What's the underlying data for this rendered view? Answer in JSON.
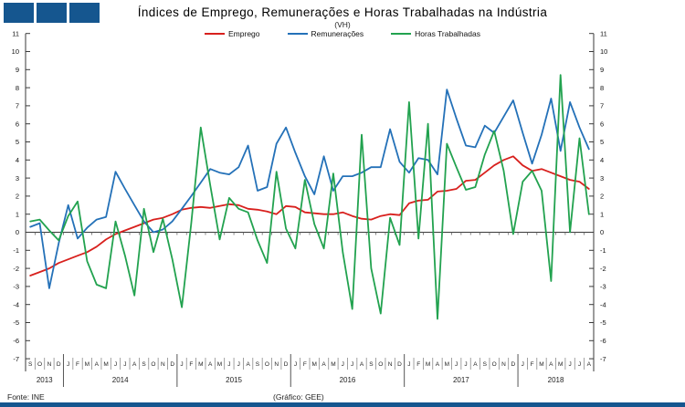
{
  "chart_data": {
    "type": "line",
    "title": "Índices de Emprego, Remunerações e Horas Trabalhadas na Indústria",
    "subtitle": "(VH)",
    "grid": false,
    "legend_position": "top",
    "y_axis": {
      "min": -7,
      "max": 11,
      "step": 1,
      "labels_both_sides": true
    },
    "months": [
      "S",
      "O",
      "N",
      "D",
      "J",
      "F",
      "M",
      "A",
      "M",
      "J",
      "J",
      "A",
      "S",
      "O",
      "N",
      "D",
      "J",
      "F",
      "M",
      "A",
      "M",
      "J",
      "J",
      "A",
      "S",
      "O",
      "N",
      "D",
      "J",
      "F",
      "M",
      "A",
      "M",
      "J",
      "J",
      "A",
      "S",
      "O",
      "N",
      "D",
      "J",
      "F",
      "M",
      "A",
      "M",
      "J",
      "J",
      "A",
      "S",
      "O",
      "N",
      "D",
      "J",
      "F",
      "M",
      "A",
      "M",
      "J",
      "J",
      "A"
    ],
    "year_groups": [
      {
        "label": "2013",
        "start": 0,
        "count": 4
      },
      {
        "label": "2014",
        "start": 4,
        "count": 12
      },
      {
        "label": "2015",
        "start": 16,
        "count": 12
      },
      {
        "label": "2016",
        "start": 28,
        "count": 12
      },
      {
        "label": "2017",
        "start": 40,
        "count": 12
      },
      {
        "label": "2018",
        "start": 52,
        "count": 8
      }
    ],
    "series": [
      {
        "id": "emprego",
        "name": "Emprego",
        "color": "#d8201d",
        "values": [
          -2.4,
          -2.2,
          -2.0,
          -1.7,
          -1.5,
          -1.3,
          -1.1,
          -0.8,
          -0.4,
          -0.1,
          0.1,
          0.3,
          0.5,
          0.7,
          0.8,
          1.0,
          1.25,
          1.35,
          1.4,
          1.35,
          1.45,
          1.55,
          1.5,
          1.3,
          1.25,
          1.15,
          1.0,
          1.45,
          1.4,
          1.1,
          1.05,
          1.0,
          1.0,
          1.1,
          0.9,
          0.75,
          0.7,
          0.9,
          1.0,
          0.95,
          1.6,
          1.75,
          1.8,
          2.25,
          2.3,
          2.4,
          2.85,
          2.9,
          3.3,
          3.7,
          4.0,
          4.2,
          3.7,
          3.4,
          3.5,
          3.3,
          3.1,
          2.9,
          2.8,
          2.4
        ]
      },
      {
        "id": "remuneracoes",
        "name": "Remunerações",
        "color": "#2471b8",
        "values": [
          0.3,
          0.5,
          -3.1,
          -0.6,
          1.5,
          -0.35,
          0.25,
          0.7,
          0.85,
          3.35,
          2.4,
          1.5,
          0.6,
          0.0,
          0.15,
          0.6,
          1.3,
          2.0,
          2.75,
          3.5,
          3.3,
          3.2,
          3.6,
          4.8,
          2.3,
          2.5,
          4.9,
          5.8,
          4.4,
          3.1,
          2.1,
          4.2,
          2.3,
          3.1,
          3.1,
          3.3,
          3.6,
          3.6,
          5.7,
          3.9,
          3.3,
          4.1,
          4.0,
          3.2,
          7.9,
          6.3,
          4.8,
          4.7,
          5.9,
          5.5,
          6.4,
          7.3,
          5.5,
          3.8,
          5.4,
          7.4,
          4.5,
          7.2,
          5.8,
          4.6
        ]
      },
      {
        "id": "horas-trabalhadas",
        "name": "Horas Trabalhadas",
        "color": "#22a24f",
        "values": [
          0.6,
          0.7,
          0.1,
          -0.45,
          0.9,
          1.7,
          -1.6,
          -2.9,
          -3.1,
          0.6,
          -1.3,
          -3.5,
          1.3,
          -1.1,
          0.75,
          -1.5,
          -4.15,
          0.5,
          5.8,
          2.6,
          -0.4,
          1.9,
          1.3,
          1.1,
          -0.45,
          -1.7,
          3.35,
          0.2,
          -0.9,
          2.9,
          0.45,
          -0.9,
          3.25,
          -1.1,
          -4.25,
          5.4,
          -2.0,
          -4.5,
          0.8,
          -0.7,
          7.2,
          -0.35,
          6.0,
          -4.8,
          4.9,
          3.6,
          2.35,
          2.5,
          4.3,
          5.6,
          3.4,
          -0.1,
          2.8,
          3.4,
          2.3,
          -2.7,
          8.7,
          0.0,
          5.2,
          1.0
        ]
      }
    ]
  },
  "footer": {
    "source": "Fonte: INE",
    "credit": "(Gráfico: GEE)"
  },
  "branding": {
    "bar_color": "#15568f",
    "square_color": "#15568f"
  }
}
